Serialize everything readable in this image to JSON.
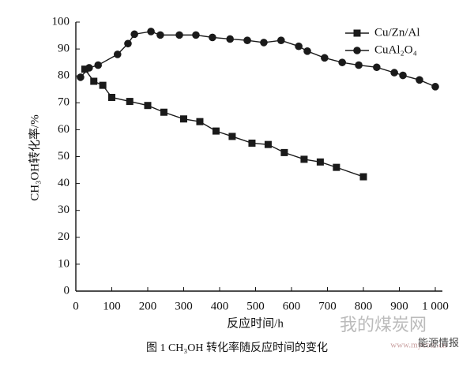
{
  "chart_data": {
    "type": "line",
    "y_label": "CH₃OH转化率/%",
    "x_label": "反应时间/h",
    "caption": "图 1  CH₃OH 转化率随反应时间的变化",
    "watermarks": [
      "我的煤炭网",
      "www.mycoal.cn",
      "能源情报"
    ],
    "xlim": [
      0,
      1000
    ],
    "ylim": [
      0,
      100
    ],
    "xticks": [
      0,
      100,
      200,
      300,
      400,
      500,
      600,
      700,
      800,
      900,
      {
        "value": 1000,
        "label": "1 000"
      }
    ],
    "yticks": [
      0,
      10,
      20,
      30,
      40,
      50,
      60,
      70,
      80,
      90,
      100
    ],
    "legend": "upper right",
    "series": [
      {
        "name": "Cu/Zn/Al",
        "color": "#1a1a1a",
        "marker": "square",
        "x": [
          25,
          50,
          75,
          100,
          150,
          200,
          245,
          300,
          345,
          390,
          435,
          490,
          535,
          580,
          635,
          680,
          725,
          800
        ],
        "values": [
          82.5,
          78,
          76.5,
          72,
          70.5,
          69,
          66.5,
          64,
          63,
          59.5,
          57.5,
          55,
          54.5,
          51.5,
          49,
          48,
          46,
          42.5
        ]
      },
      {
        "name": "CuAl₂O₄",
        "color": "#1a1a1a",
        "marker": "circle",
        "x": [
          13,
          37,
          62,
          116,
          145,
          163,
          209,
          235,
          288,
          334,
          380,
          429,
          477,
          523,
          571,
          620,
          644,
          692,
          741,
          787,
          837,
          886,
          910,
          956,
          1000
        ],
        "values": [
          79.5,
          83,
          84,
          88,
          92,
          95.5,
          96.5,
          95.2,
          95.2,
          95.2,
          94.3,
          93.7,
          93.2,
          92.4,
          93.2,
          91,
          89.2,
          86.7,
          85,
          84,
          83.2,
          81.2,
          80.2,
          78.5,
          76
        ]
      }
    ]
  }
}
